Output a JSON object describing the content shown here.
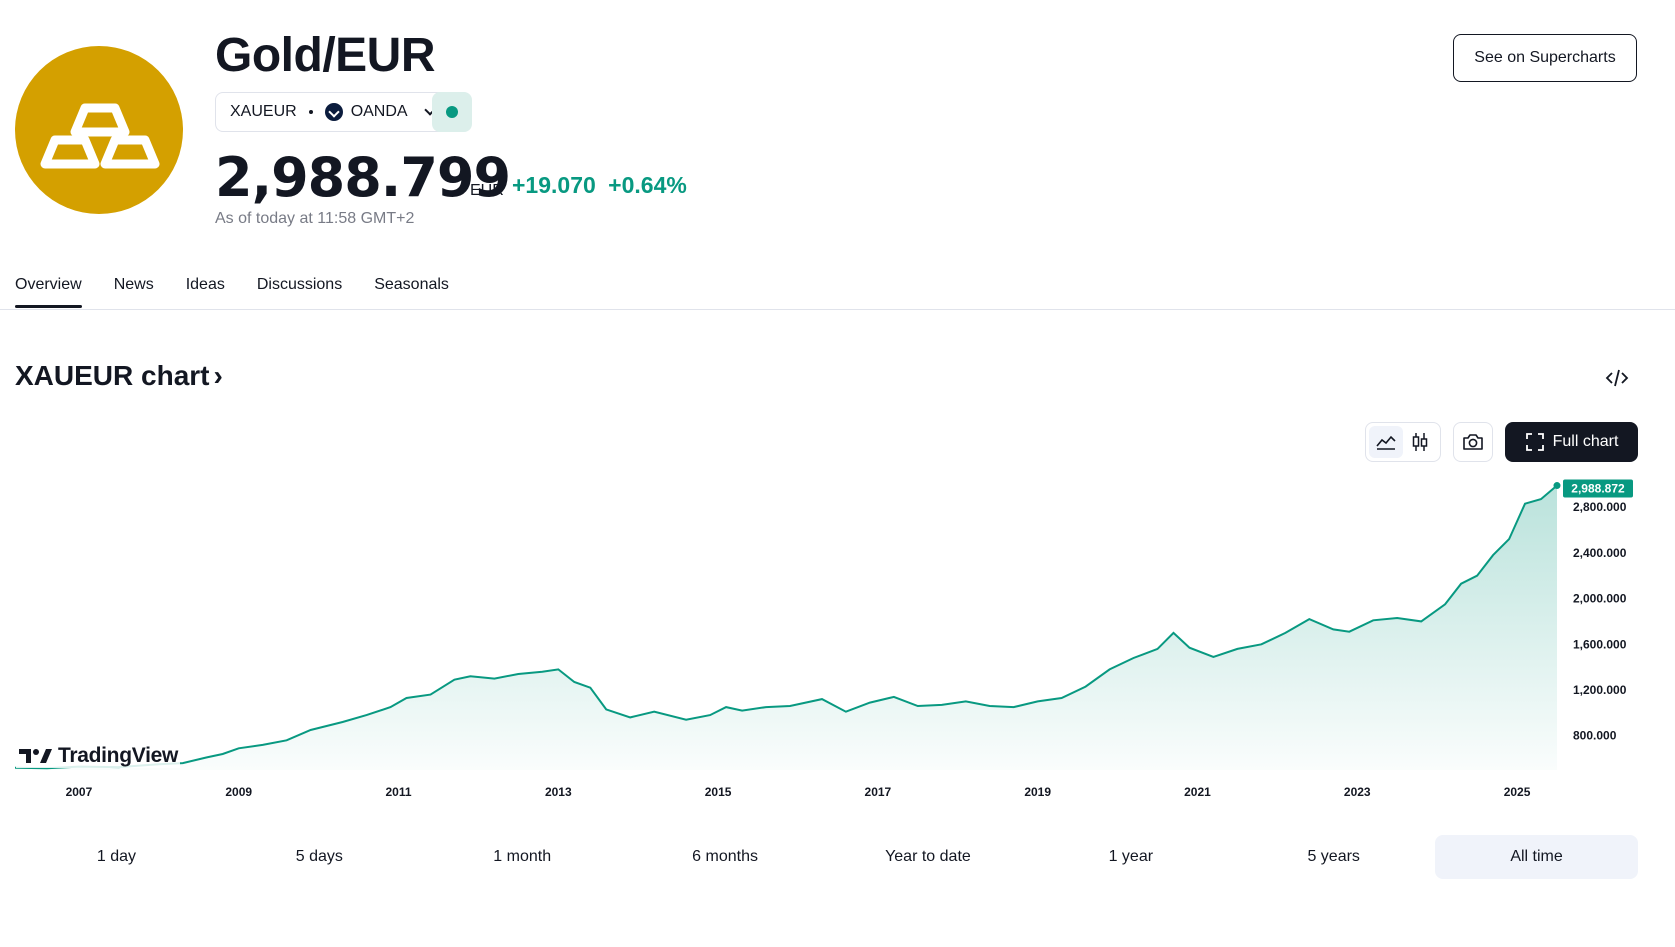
{
  "header": {
    "title": "Gold/EUR",
    "symbol": "XAUEUR",
    "exchange": "OANDA",
    "price": "2,988.799",
    "currency": "EUR",
    "change": "+19.070",
    "change_pct": "+0.64%",
    "as_of": "As of today at 11:58 GMT+2",
    "supercharts_label": "See on Supercharts",
    "status": "market-open",
    "accent_color": "#089981",
    "logo_color": "#d4a000"
  },
  "tabs": [
    {
      "label": "Overview",
      "active": true
    },
    {
      "label": "News",
      "active": false
    },
    {
      "label": "Ideas",
      "active": false
    },
    {
      "label": "Discussions",
      "active": false
    },
    {
      "label": "Seasonals",
      "active": false
    }
  ],
  "chart_section": {
    "heading": "XAUEUR chart",
    "heading_arrow": "›",
    "full_chart_label": "Full chart",
    "watermark": "TradingView",
    "chart_style_selected": "area"
  },
  "ranges": [
    {
      "label": "1 day",
      "active": false
    },
    {
      "label": "5 days",
      "active": false
    },
    {
      "label": "1 month",
      "active": false
    },
    {
      "label": "6 months",
      "active": false
    },
    {
      "label": "Year to date",
      "active": false
    },
    {
      "label": "1 year",
      "active": false
    },
    {
      "label": "5 years",
      "active": false
    },
    {
      "label": "All time",
      "active": true
    }
  ],
  "chart_data": {
    "type": "area",
    "x_unit": "year",
    "x_ticks": [
      "2007",
      "2009",
      "2011",
      "2013",
      "2015",
      "2017",
      "2019",
      "2021",
      "2023",
      "2025"
    ],
    "y_ticks": [
      "800.000",
      "1,200.000",
      "1,600.000",
      "2,000.000",
      "2,400.000",
      "2,800.000"
    ],
    "ylim": [
      500,
      2950
    ],
    "last_value_label": "2,988.872",
    "line_color": "#089981",
    "grid": false,
    "series": [
      {
        "x": [
          2006.2,
          2006.6,
          2007.0,
          2007.5,
          2008.0,
          2008.3,
          2008.6,
          2008.8,
          2009.0,
          2009.3,
          2009.6,
          2009.9,
          2010.3,
          2010.6,
          2010.9,
          2011.1,
          2011.4,
          2011.7,
          2011.9,
          2012.2,
          2012.5,
          2012.8,
          2013.0,
          2013.2,
          2013.4,
          2013.6,
          2013.9,
          2014.2,
          2014.6,
          2014.9,
          2015.1,
          2015.3,
          2015.6,
          2015.9,
          2016.3,
          2016.6,
          2016.9,
          2017.2,
          2017.5,
          2017.8,
          2018.1,
          2018.4,
          2018.7,
          2019.0,
          2019.3,
          2019.6,
          2019.9,
          2020.2,
          2020.5,
          2020.7,
          2020.9,
          2021.2,
          2021.5,
          2021.8,
          2022.1,
          2022.4,
          2022.7,
          2022.9,
          2023.2,
          2023.5,
          2023.8,
          2024.1,
          2024.3,
          2024.5,
          2024.7,
          2024.9,
          2025.1,
          2025.3,
          2025.5
        ],
        "y": [
          520,
          515,
          530,
          525,
          550,
          560,
          610,
          640,
          690,
          720,
          760,
          850,
          920,
          980,
          1050,
          1130,
          1160,
          1290,
          1320,
          1300,
          1340,
          1360,
          1380,
          1270,
          1220,
          1030,
          960,
          1010,
          940,
          980,
          1050,
          1020,
          1050,
          1060,
          1120,
          1010,
          1090,
          1140,
          1060,
          1070,
          1100,
          1060,
          1050,
          1100,
          1130,
          1230,
          1380,
          1480,
          1560,
          1700,
          1570,
          1490,
          1560,
          1600,
          1700,
          1820,
          1730,
          1710,
          1810,
          1830,
          1800,
          1950,
          2130,
          2200,
          2380,
          2520,
          2830,
          2870,
          2989
        ]
      }
    ]
  }
}
